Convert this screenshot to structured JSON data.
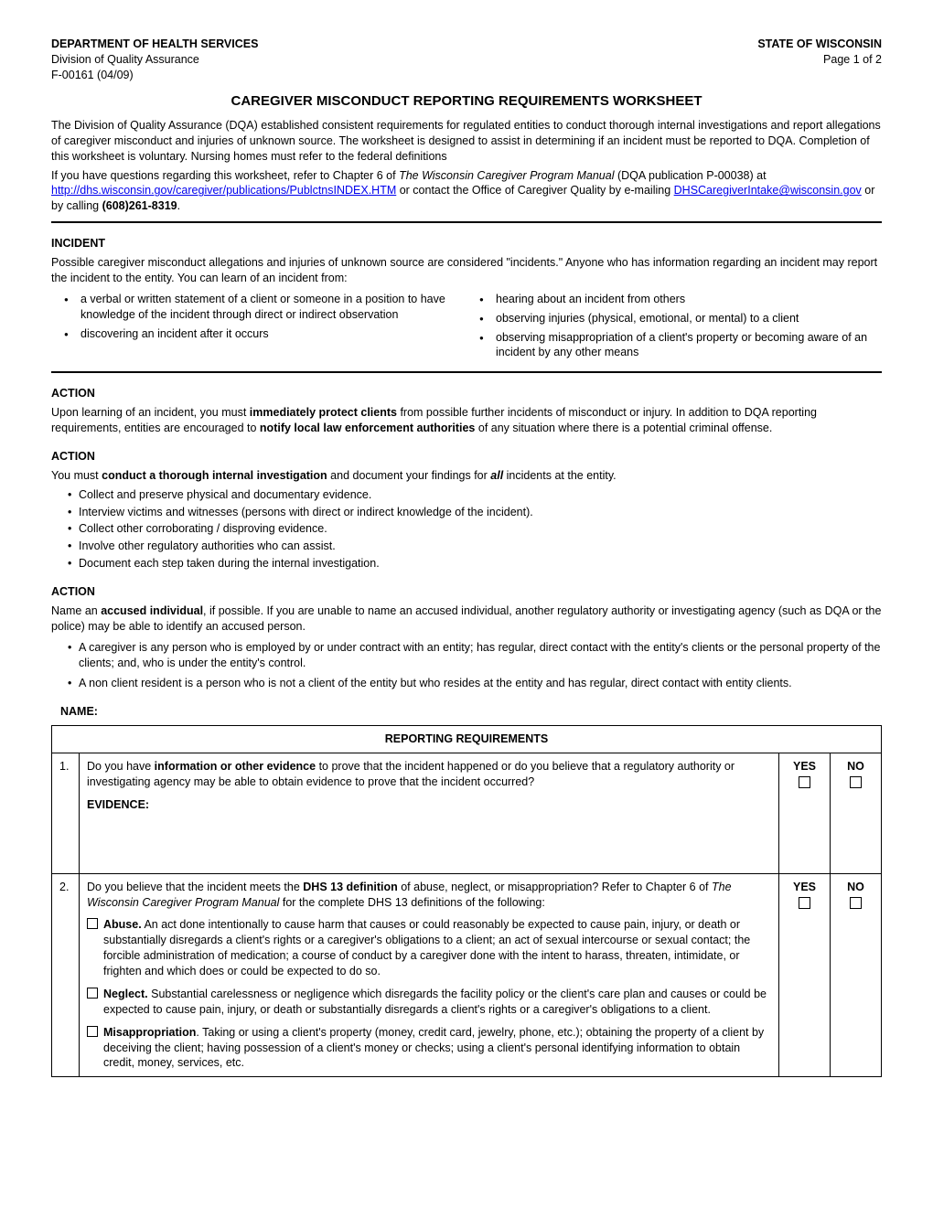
{
  "header": {
    "dept": "DEPARTMENT OF HEALTH SERVICES",
    "division": "Division of Quality Assurance",
    "formno": "F-00161 (04/09)",
    "state": "STATE OF WISCONSIN",
    "page": "Page 1 of 2"
  },
  "title": "CAREGIVER MISCONDUCT REPORTING REQUIREMENTS WORKSHEET",
  "intro1": "The Division of Quality Assurance (DQA) established consistent requirements for regulated entities to conduct thorough internal investigations and report allegations of caregiver misconduct and injuries of unknown source.  The worksheet is designed to assist in determining if an incident must be reported to DQA.  Completion of this worksheet is voluntary.  Nursing homes must refer to the federal definitions",
  "intro2a": "If you have questions regarding this worksheet, refer to Chapter 6 of ",
  "intro2i": "The Wisconsin Caregiver Program Manual",
  "intro2b": " (DQA publication P-00038) at ",
  "link1": "http://dhs.wisconsin.gov/caregiver/publications/PublctnsINDEX.HTM",
  "intro2c": "   or contact the Office of Caregiver Quality by e-mailing ",
  "link2": "DHSCaregiverIntake@wisconsin.gov",
  "intro2d": "   or by calling ",
  "phone": "(608)261-8319",
  "intro2e": ".",
  "incident": {
    "head": "INCIDENT",
    "lead": "Possible caregiver misconduct allegations and injuries of unknown source are considered \"incidents.\"  Anyone who has information regarding an incident may report the incident to the entity.  You can learn of an incident from:",
    "left": [
      " a verbal or written statement of a client or someone in a position to have knowledge of the incident through direct or indirect observation",
      "discovering an incident after it occurs"
    ],
    "right": [
      "hearing about an incident from others",
      "observing injuries (physical, emotional, or mental) to a client",
      "observing misappropriation of a client's property or becoming aware of an incident by any other means"
    ]
  },
  "action1": {
    "head": "ACTION",
    "part_a": "Upon learning of an incident, you must ",
    "bold_a": "immediately protect clients",
    "part_b": " from possible further incidents of misconduct or injury.  In addition to DQA reporting requirements, entities are encouraged to ",
    "bold_b": "notify local law enforcement authorities",
    "part_c": " of any situation where there is a potential criminal offense."
  },
  "action2": {
    "head": "ACTION",
    "lead_a": "You must ",
    "lead_bold": "conduct a thorough internal investigation",
    "lead_b": " and document your findings for ",
    "lead_ital": "all",
    "lead_c": " incidents at the entity.",
    "items": [
      "Collect and preserve physical and documentary evidence.",
      "Interview victims and witnesses (persons with direct or indirect knowledge of the incident).",
      "Collect other corroborating / disproving evidence.",
      "Involve other regulatory authorities who can assist.",
      "Document each step taken during the internal investigation."
    ]
  },
  "action3": {
    "head": "ACTION",
    "lead_a": "Name an ",
    "lead_bold": "accused individual",
    "lead_b": ", if possible.  If you are unable to name an accused individual, another regulatory authority or investigating agency (such as DQA or the police) may be able to identify an accused person.",
    "items": [
      "A caregiver is any person who is employed by or under contract with an entity; has regular, direct contact with the entity's clients or the personal property of the clients; and, who is under the entity's control.",
      "A non client resident is a person who is not a client of the entity but who resides at the entity and has regular, direct contact with entity clients."
    ]
  },
  "name_label": "NAME:",
  "table": {
    "banner": "REPORTING REQUIREMENTS",
    "yes": "YES",
    "no": "NO",
    "rows": [
      {
        "num": "1.",
        "q_a": "Do you have ",
        "q_bold": "information or other evidence",
        "q_b": " to prove that the incident happened or do you believe that a regulatory authority or investigating agency may be able to obtain evidence to prove that the incident occurred?",
        "evidence": "EVIDENCE:"
      },
      {
        "num": "2.",
        "q_a": "Do you believe that the incident meets the ",
        "q_bold": "DHS 13 definition",
        "q_b": " of abuse, neglect, or misappropriation?  Refer to Chapter 6 of ",
        "q_ital": "The Wisconsin Caregiver Program Manual",
        "q_c": " for the complete DHS 13 definitions of the following:",
        "defs": [
          {
            "term": "Abuse.",
            "body": "  An act done intentionally to cause harm that causes or could reasonably be expected to cause pain, injury, or death or substantially disregards a client's rights or a caregiver's obligations to a client; an act of sexual intercourse or sexual contact; the forcible administration of medication; a course of conduct by a caregiver done with the intent to harass, threaten, intimidate, or frighten and which does or could be expected to do so."
          },
          {
            "term": "Neglect.",
            "body": "  Substantial carelessness or negligence which disregards the facility policy or the client's care plan and causes or could be expected to cause pain, injury, or death or substantially disregards a client's rights or a caregiver's obligations to a client."
          },
          {
            "term": "Misappropriation",
            "body": ".  Taking or using a client's property (money, credit card, jewelry, phone, etc.); obtaining the property of a client by deceiving the client; having possession of a client's money or checks; using a client's personal identifying information to obtain credit, money, services, etc."
          }
        ]
      }
    ]
  }
}
